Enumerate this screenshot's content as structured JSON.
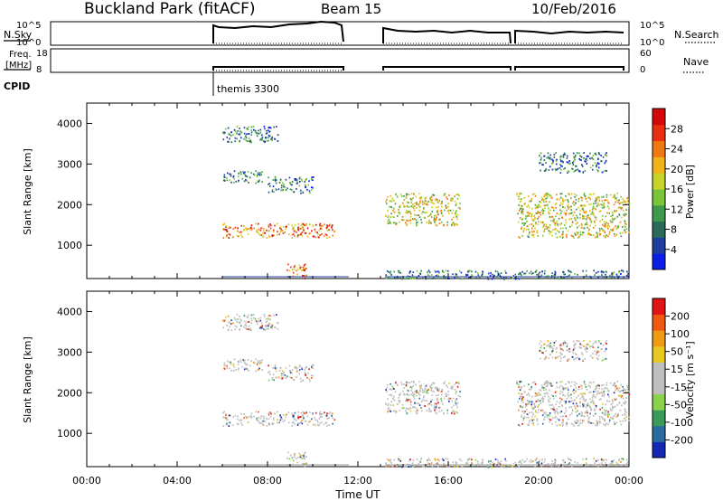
{
  "header": {
    "station": "Buckland Park (fitACF)",
    "beam": "Beam 15",
    "date": "10/Feb/2016"
  },
  "side_labels": {
    "nsky": "N.Sky",
    "freq_line1": "Freq.",
    "freq_line2": "[MHz]",
    "cpid": "CPID",
    "nsearch": "N.Search",
    "nave": "Nave"
  },
  "sky_axis": {
    "top": "10^5",
    "bottom": "10^0"
  },
  "freq_axis": {
    "top": "18",
    "bottom": "8"
  },
  "search_axis": {
    "top": "10^5",
    "bottom": "10^0"
  },
  "nave_axis": {
    "top": "60",
    "bottom": "0"
  },
  "cpid_label": "themis 3300",
  "time_axis": {
    "ticks": [
      "00:00",
      "04:00",
      "08:00",
      "12:00",
      "16:00",
      "20:00",
      "00:00"
    ],
    "label": "Time UT"
  },
  "range_axis": {
    "label": "Slant Range [km]",
    "ticks": [
      "1000",
      "2000",
      "3000",
      "4000"
    ]
  },
  "power_scale": {
    "label": "Power [dB]",
    "ticks": [
      "4",
      "8",
      "12",
      "16",
      "20",
      "24",
      "28"
    ],
    "colors": [
      "#0a1ee6",
      "#1e3fa0",
      "#2a6a5a",
      "#3e9a4a",
      "#7ac43a",
      "#c8d428",
      "#f0b418",
      "#f07810",
      "#e83010",
      "#d40808"
    ]
  },
  "velocity_scale": {
    "label": "Velocity [m s⁻¹]",
    "ticks": [
      "200",
      "100",
      "50",
      "15",
      "-15",
      "-50",
      "-100",
      "-200"
    ],
    "colors": [
      "#1428b4",
      "#2a6aa0",
      "#3a9a5a",
      "#8ad24a",
      "#bebebe",
      "#bebebe",
      "#e6c820",
      "#f09a14",
      "#f05a10",
      "#e01414"
    ]
  },
  "chart_data": {
    "type": "heatmap",
    "x_range_hours": [
      0,
      24
    ],
    "y_range_km": [
      180,
      4500
    ],
    "operating_intervals_ut": [
      [
        6,
        11.6
      ],
      [
        13.2,
        18.8
      ],
      [
        19.0,
        24
      ]
    ],
    "power_clusters": [
      {
        "t": [
          6.0,
          11.0
        ],
        "range": [
          1200,
          1550
        ],
        "level": "strong"
      },
      {
        "t": [
          6.0,
          7.8
        ],
        "range": [
          2550,
          2850
        ],
        "level": "weak"
      },
      {
        "t": [
          8.0,
          10.0
        ],
        "range": [
          2300,
          2700
        ],
        "level": "weak"
      },
      {
        "t": [
          6.0,
          8.5
        ],
        "range": [
          3550,
          3950
        ],
        "level": "weak"
      },
      {
        "t": [
          8.8,
          9.7
        ],
        "range": [
          200,
          550
        ],
        "level": "strong"
      },
      {
        "t": [
          13.2,
          16.5
        ],
        "range": [
          1500,
          2300
        ],
        "level": "moderate"
      },
      {
        "t": [
          19.0,
          24.0
        ],
        "range": [
          1200,
          2300
        ],
        "level": "moderate"
      },
      {
        "t": [
          20.0,
          23.0
        ],
        "range": [
          2800,
          3300
        ],
        "level": "weak"
      },
      {
        "t": [
          13.2,
          24.0
        ],
        "range": [
          180,
          400
        ],
        "level": "weak"
      }
    ]
  }
}
